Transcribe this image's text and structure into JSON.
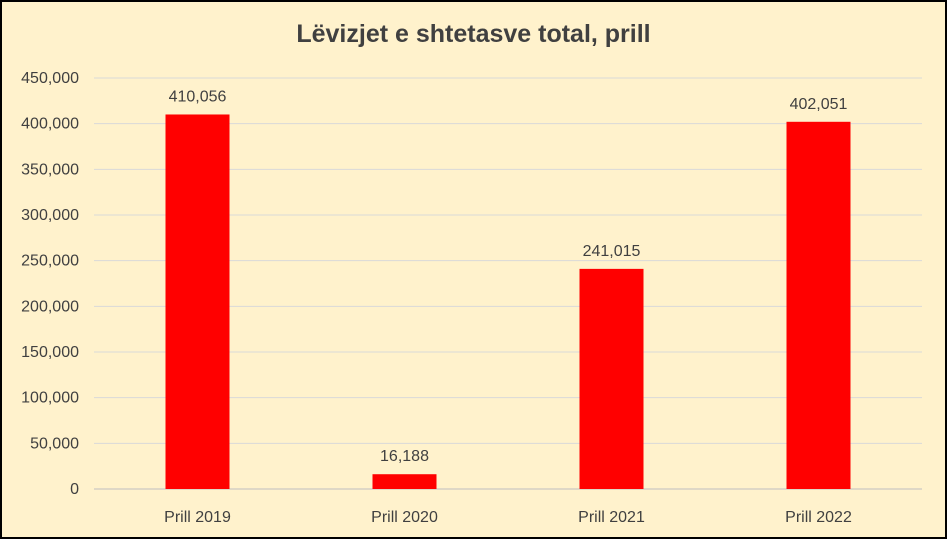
{
  "chart_data": {
    "type": "bar",
    "title": "Lëvizjet e shtetasve total, prill",
    "categories": [
      "Prill 2019",
      "Prill 2020",
      "Prill 2021",
      "Prill 2022"
    ],
    "values": [
      410056,
      16188,
      241015,
      402051
    ],
    "data_labels": [
      "410,056",
      "16,188",
      "241,015",
      "402,051"
    ],
    "ylim": [
      0,
      450000
    ],
    "yticks": [
      0,
      50000,
      100000,
      150000,
      200000,
      250000,
      300000,
      350000,
      400000,
      450000
    ],
    "ytick_labels": [
      "0",
      "50,000",
      "100,000",
      "150,000",
      "200,000",
      "250,000",
      "300,000",
      "350,000",
      "400,000",
      "450,000"
    ],
    "grid": true,
    "legend": "none",
    "bar_color": "#ff0000",
    "background_color": "#fff2cc"
  }
}
